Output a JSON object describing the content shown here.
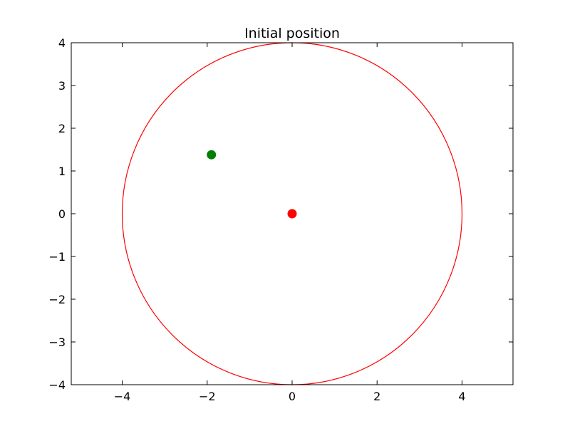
{
  "chart_data": {
    "type": "scatter",
    "title": "Initial position",
    "xlabel": "",
    "ylabel": "",
    "xlim": [
      -5.2,
      5.2
    ],
    "ylim": [
      -4,
      4
    ],
    "xticks": [
      -4,
      -2,
      0,
      2,
      4
    ],
    "xtick_labels": [
      "−4",
      "−2",
      "0",
      "2",
      "4"
    ],
    "yticks": [
      -4,
      -3,
      -2,
      -1,
      0,
      1,
      2,
      3,
      4
    ],
    "ytick_labels": [
      "−4",
      "−3",
      "−2",
      "−1",
      "0",
      "1",
      "2",
      "3",
      "4"
    ],
    "grid": false,
    "legend": "none",
    "circle": {
      "center": [
        0,
        0
      ],
      "radius": 4,
      "color": "#ff0000"
    },
    "points": [
      {
        "x": -1.9,
        "y": 1.38,
        "color": "#008000"
      },
      {
        "x": 0,
        "y": 0,
        "color": "#ff0000"
      }
    ]
  }
}
